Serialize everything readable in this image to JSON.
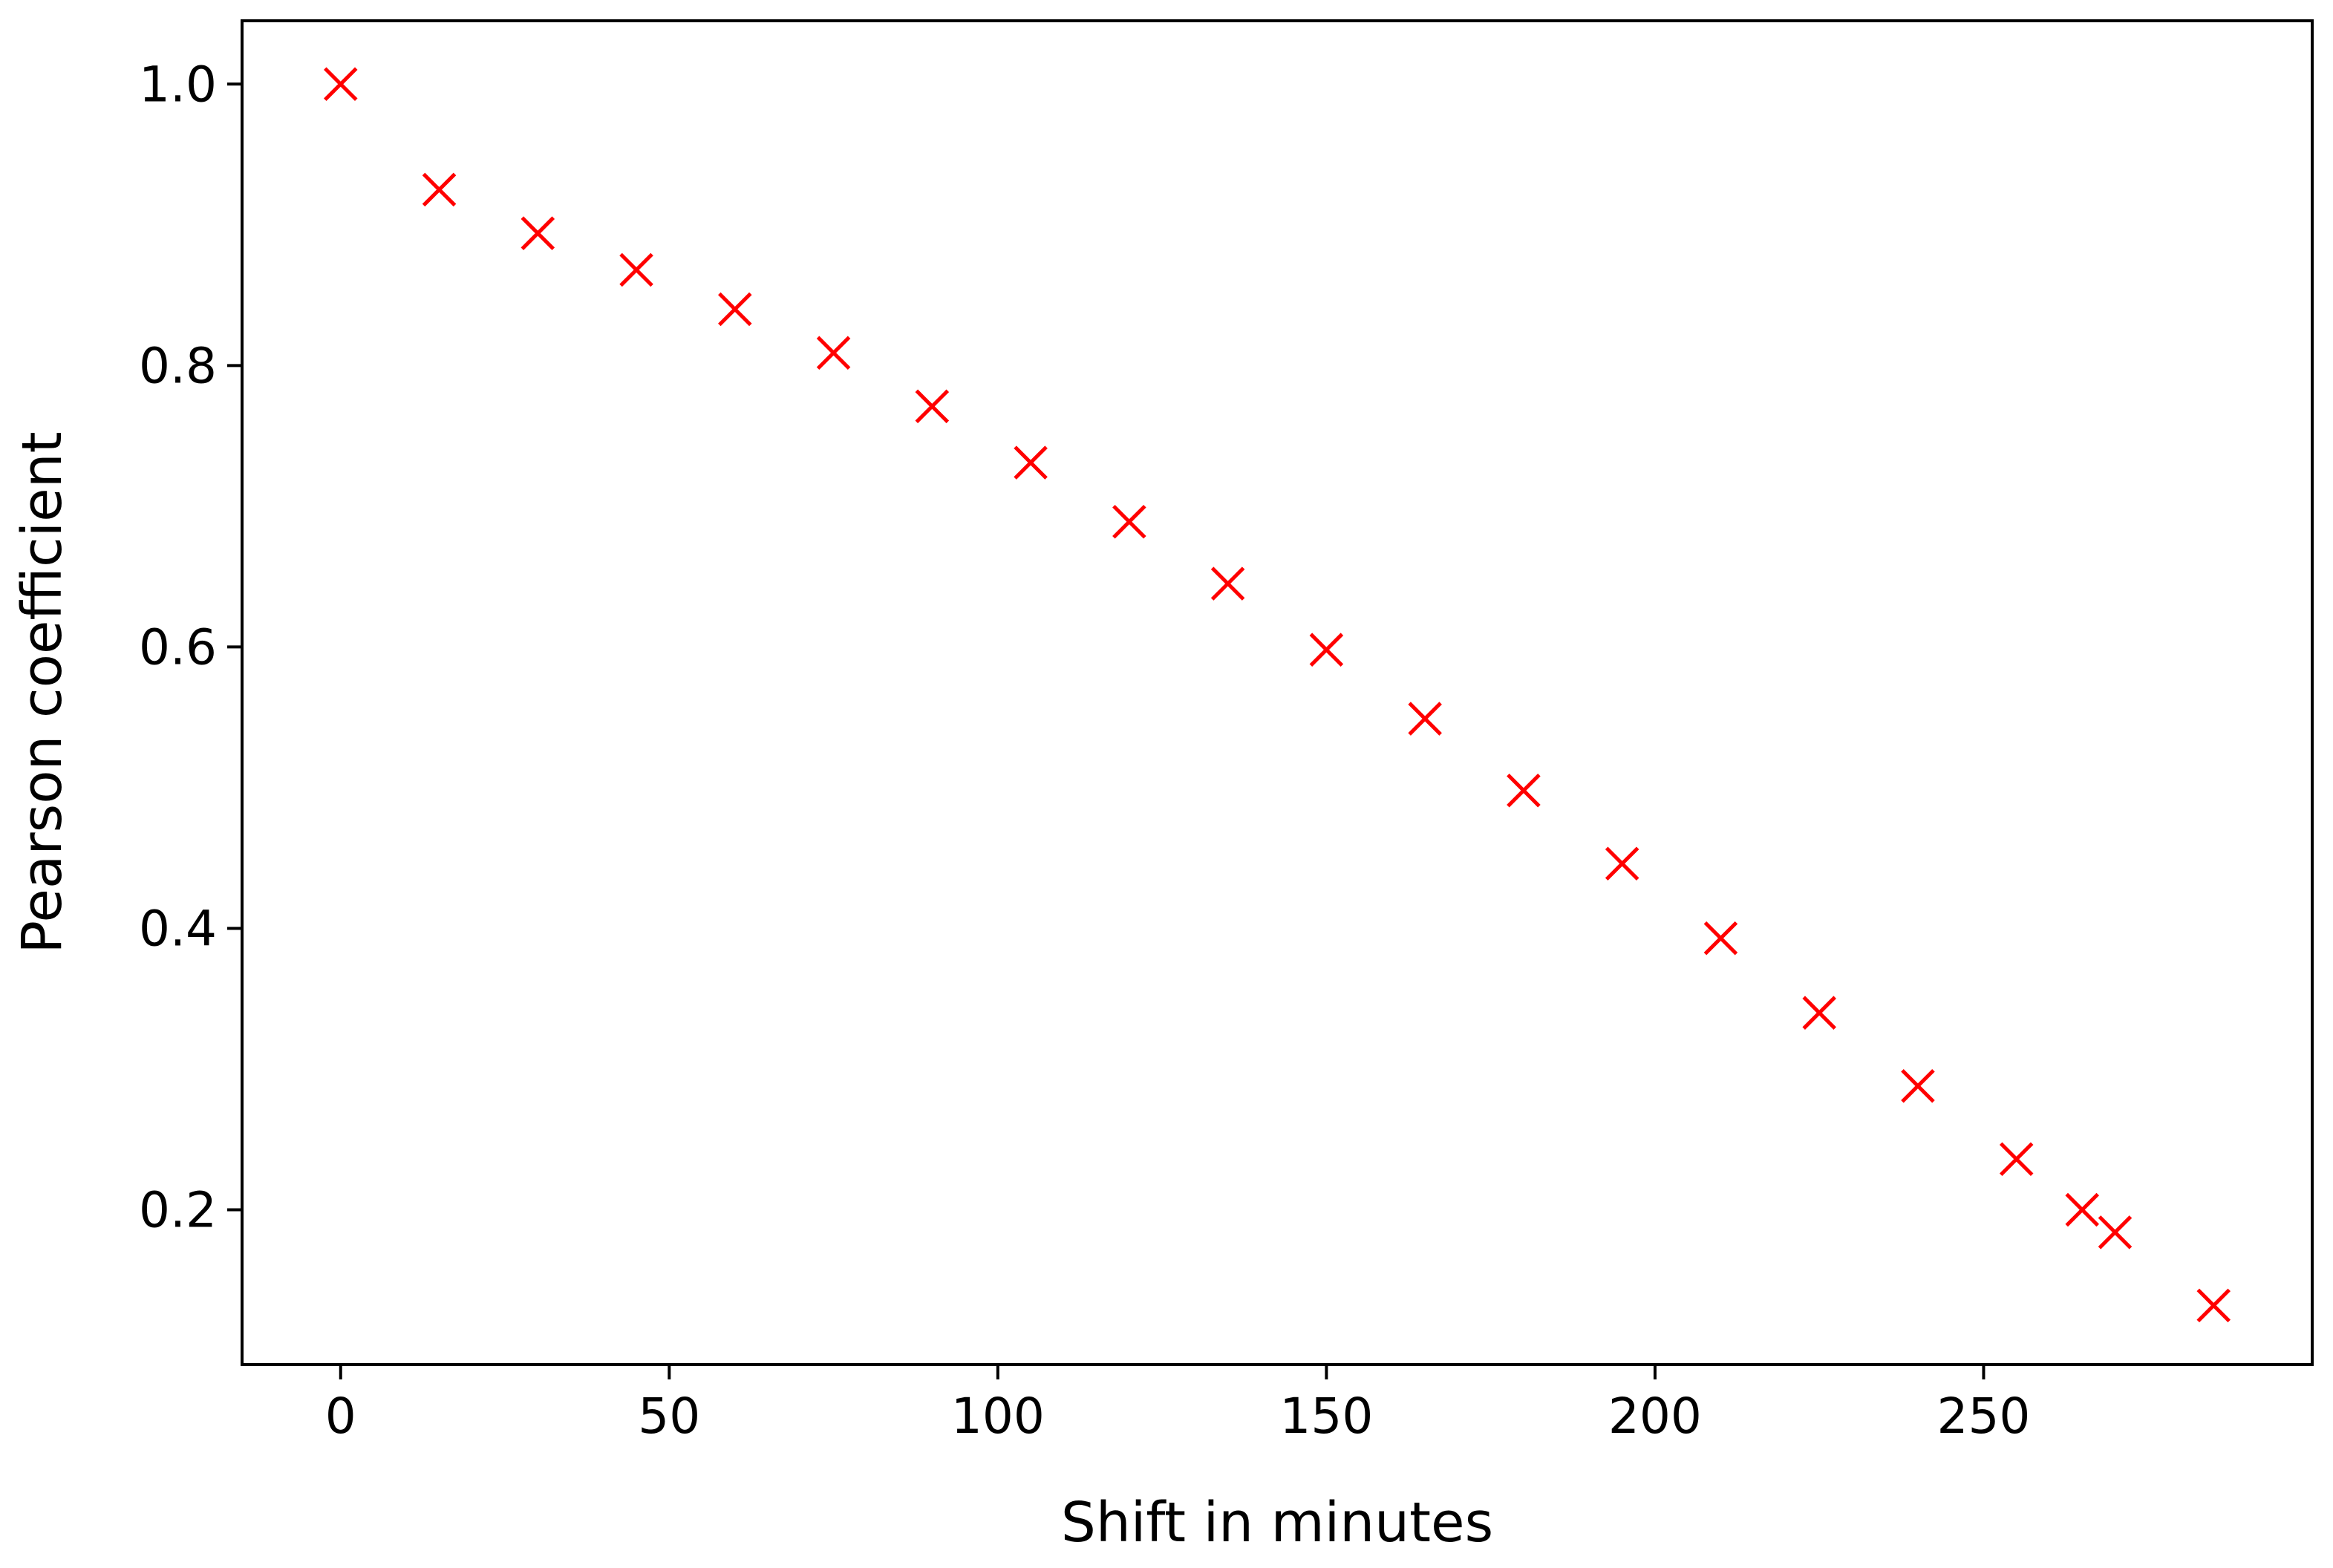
{
  "chart_data": {
    "type": "scatter",
    "xlabel": "Shift in minutes",
    "ylabel": "Pearson coefficient",
    "xlim": [
      -15,
      300
    ],
    "ylim": [
      0.09,
      1.045
    ],
    "x_ticks": [
      0,
      50,
      100,
      150,
      200,
      250
    ],
    "x_tick_labels": [
      "0",
      "50",
      "100",
      "150",
      "200",
      "250"
    ],
    "y_ticks": [
      0.2,
      0.4,
      0.6,
      0.8,
      1.0
    ],
    "y_tick_labels": [
      "0.2",
      "0.4",
      "0.6",
      "0.8",
      "1.0"
    ],
    "grid": false,
    "marker": "x",
    "marker_color": "#ff0000",
    "points": [
      {
        "x": 0,
        "y": 1.0
      },
      {
        "x": 15,
        "y": 0.925
      },
      {
        "x": 30,
        "y": 0.894
      },
      {
        "x": 45,
        "y": 0.868
      },
      {
        "x": 60,
        "y": 0.84
      },
      {
        "x": 75,
        "y": 0.809
      },
      {
        "x": 90,
        "y": 0.771
      },
      {
        "x": 105,
        "y": 0.731
      },
      {
        "x": 120,
        "y": 0.689
      },
      {
        "x": 135,
        "y": 0.645
      },
      {
        "x": 150,
        "y": 0.598
      },
      {
        "x": 165,
        "y": 0.549
      },
      {
        "x": 180,
        "y": 0.498
      },
      {
        "x": 195,
        "y": 0.446
      },
      {
        "x": 210,
        "y": 0.393
      },
      {
        "x": 225,
        "y": 0.34
      },
      {
        "x": 240,
        "y": 0.288
      },
      {
        "x": 255,
        "y": 0.236
      },
      {
        "x": 265,
        "y": 0.2
      },
      {
        "x": 270,
        "y": 0.184
      },
      {
        "x": 285,
        "y": 0.132
      }
    ]
  }
}
